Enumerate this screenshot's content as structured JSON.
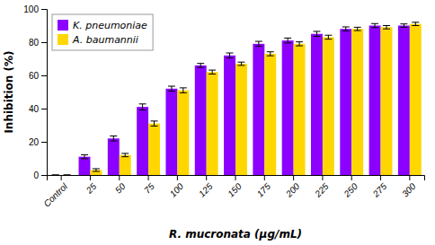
{
  "chart_data": {
    "type": "bar",
    "categories": [
      "Control",
      "25",
      "50",
      "75",
      "100",
      "125",
      "150",
      "175",
      "200",
      "225",
      "250",
      "275",
      "300"
    ],
    "series": [
      {
        "name": "K. pneumoniae",
        "color": "#8B00FF",
        "values": [
          0,
          11,
          22,
          41,
          52,
          66,
          72,
          79,
          81,
          85,
          88,
          90,
          90
        ],
        "errors": [
          0,
          1.2,
          1.5,
          1.8,
          1.5,
          1.2,
          1.5,
          1.5,
          1.5,
          1.5,
          1.2,
          1.2,
          1.0
        ]
      },
      {
        "name": "A. baumannii",
        "color": "#FFD700",
        "values": [
          0,
          3,
          12,
          31,
          51,
          62,
          67,
          73,
          79,
          83,
          88,
          89,
          91
        ],
        "errors": [
          0,
          0.8,
          1.0,
          1.5,
          1.5,
          1.2,
          1.0,
          1.2,
          1.2,
          1.2,
          1.0,
          1.0,
          1.0
        ]
      }
    ],
    "xlabel": "R. mucronata (μg/mL)",
    "ylabel": "Inhibition (%)",
    "ylim": [
      0,
      100
    ],
    "yticks": [
      0,
      20,
      40,
      60,
      80,
      100
    ],
    "grid": false,
    "legend": "upper left"
  }
}
